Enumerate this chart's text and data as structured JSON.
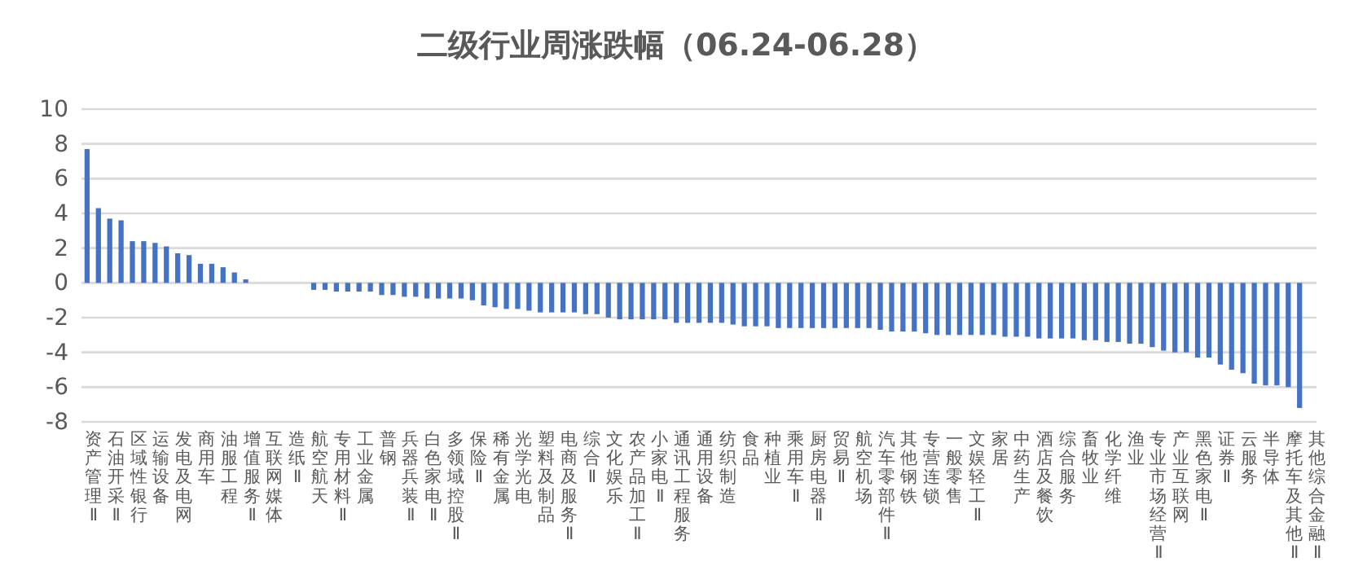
{
  "chart_data": {
    "type": "bar",
    "title": "二级行业周涨跌幅（06.24-06.28）",
    "categories": [
      "资产管理Ⅱ",
      null,
      "石油开采Ⅱ",
      null,
      "区域性银行",
      null,
      "运输设备",
      null,
      "发电及电网",
      null,
      "商用车",
      null,
      "油服工程",
      null,
      "增值服务Ⅱ",
      null,
      "互联网媒体",
      null,
      "造纸Ⅱ",
      null,
      "航空航天",
      null,
      "专用材料Ⅱ",
      null,
      "工业金属",
      null,
      "普钢",
      null,
      "兵器兵装Ⅱ",
      null,
      "白色家电Ⅱ",
      null,
      "多领域控股Ⅱ",
      null,
      "保险Ⅱ",
      null,
      "稀有金属",
      null,
      "光学光电",
      null,
      "塑料及制品",
      null,
      "电商及服务Ⅱ",
      null,
      "综合Ⅱ",
      null,
      "文化娱乐",
      null,
      "农产品加工Ⅱ",
      null,
      "小家电Ⅱ",
      null,
      "通讯工程服务",
      null,
      "通用设备",
      null,
      "纺织制造",
      null,
      "食品",
      null,
      "种植业",
      null,
      "乘用车Ⅱ",
      null,
      "厨房电器Ⅱ",
      null,
      "贸易Ⅱ",
      null,
      "航空机场",
      null,
      "汽车零部件Ⅱ",
      null,
      "其他钢铁",
      null,
      "专营连锁",
      null,
      "一般零售",
      null,
      "文娱轻工Ⅱ",
      null,
      "家居",
      null,
      "中药生产",
      null,
      "酒店及餐饮",
      null,
      "综合服务",
      null,
      "畜牧业",
      null,
      "化学纤维",
      null,
      "渔业",
      null,
      "专业市场经营Ⅱ",
      null,
      "产业互联网",
      null,
      "黑色家电Ⅱ",
      null,
      "证券Ⅱ",
      null,
      "云服务",
      null,
      "半导体",
      null,
      "摩托车及其他Ⅱ",
      null,
      "其他综合金融Ⅱ"
    ],
    "values": [
      7.7,
      4.3,
      3.7,
      3.6,
      2.4,
      2.4,
      2.3,
      2.1,
      1.7,
      1.6,
      1.1,
      1.1,
      0.9,
      0.6,
      0.2,
      0,
      0,
      0,
      0,
      0,
      -0.4,
      -0.4,
      -0.5,
      -0.5,
      -0.5,
      -0.5,
      -0.7,
      -0.7,
      -0.8,
      -0.8,
      -0.9,
      -0.9,
      -0.9,
      -0.9,
      -1.0,
      -1.3,
      -1.4,
      -1.5,
      -1.5,
      -1.6,
      -1.7,
      -1.7,
      -1.7,
      -1.7,
      -1.8,
      -1.8,
      -2.0,
      -2.1,
      -2.1,
      -2.1,
      -2.1,
      -2.1,
      -2.3,
      -2.3,
      -2.3,
      -2.3,
      -2.3,
      -2.4,
      -2.5,
      -2.5,
      -2.5,
      -2.6,
      -2.6,
      -2.6,
      -2.6,
      -2.6,
      -2.6,
      -2.6,
      -2.6,
      -2.6,
      -2.7,
      -2.8,
      -2.8,
      -2.8,
      -2.9,
      -3.0,
      -3.0,
      -3.0,
      -3.0,
      -3.0,
      -3.0,
      -3.1,
      -3.1,
      -3.1,
      -3.2,
      -3.2,
      -3.2,
      -3.2,
      -3.3,
      -3.3,
      -3.4,
      -3.4,
      -3.5,
      -3.5,
      -3.7,
      -3.9,
      -4.0,
      -4.0,
      -4.3,
      -4.3,
      -4.7,
      -5.0,
      -5.2,
      -5.8,
      -5.9,
      -5.9,
      -6.0,
      -7.2,
      null
    ],
    "color": "#4472c4",
    "ylim": [
      -8,
      10
    ],
    "yticks": [
      -8,
      -6,
      -4,
      -2,
      0,
      2,
      4,
      6,
      8,
      10
    ],
    "grid": "y"
  }
}
